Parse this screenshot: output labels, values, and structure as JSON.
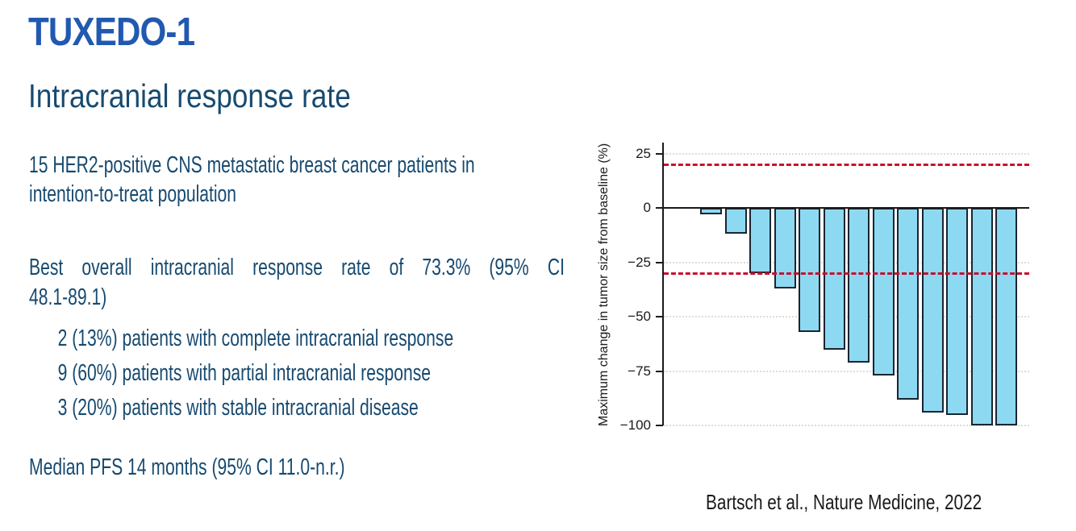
{
  "slide": {
    "title": "TUXEDO-1",
    "subtitle": "Intracranial response rate",
    "body": {
      "para1_lines": [
        "15 HER2-positive CNS metastatic breast cancer patients in",
        "intention-to-treat population"
      ],
      "para2_lines": [
        "Best overall intracranial response rate of 73.3% (95% CI",
        "48.1-89.1)"
      ],
      "bullets": [
        "2 (13%) patients with complete intracranial response",
        "9 (60%) patients with partial intracranial response",
        "3 (20%) patients with stable intracranial disease"
      ],
      "median_line": "Median PFS 14 months (95% CI 11.0-n.r.)"
    },
    "citation": "Bartsch et al., Nature Medicine, 2022"
  },
  "chart_data": {
    "type": "bar",
    "subtype": "waterfall",
    "title": "",
    "xlabel": "",
    "ylabel": "Maximum change in tumor size from baseline (%)",
    "values": [
      -3,
      -12,
      -30,
      -37,
      -57,
      -65,
      -71,
      -77,
      -88,
      -94,
      -95,
      -100,
      -100
    ],
    "ylim": [
      30,
      -100
    ],
    "yticks": [
      25,
      0,
      -25,
      -50,
      -75,
      -100
    ],
    "gridlines": [
      25,
      -25,
      -50,
      -75,
      -100
    ],
    "reference_lines": [
      20,
      -30
    ],
    "grid_on": true,
    "legend": "none",
    "colors": {
      "bar_fill": "#8ED9F2",
      "bar_border": "#1A2530",
      "reference_line": "#C8102E",
      "gridline": "#DCDCDC",
      "axis": "#1a1a1a"
    }
  },
  "theme": {
    "title_color": "#2159B0",
    "text_color": "#174A70",
    "citation_color": "#1a1a1a"
  }
}
